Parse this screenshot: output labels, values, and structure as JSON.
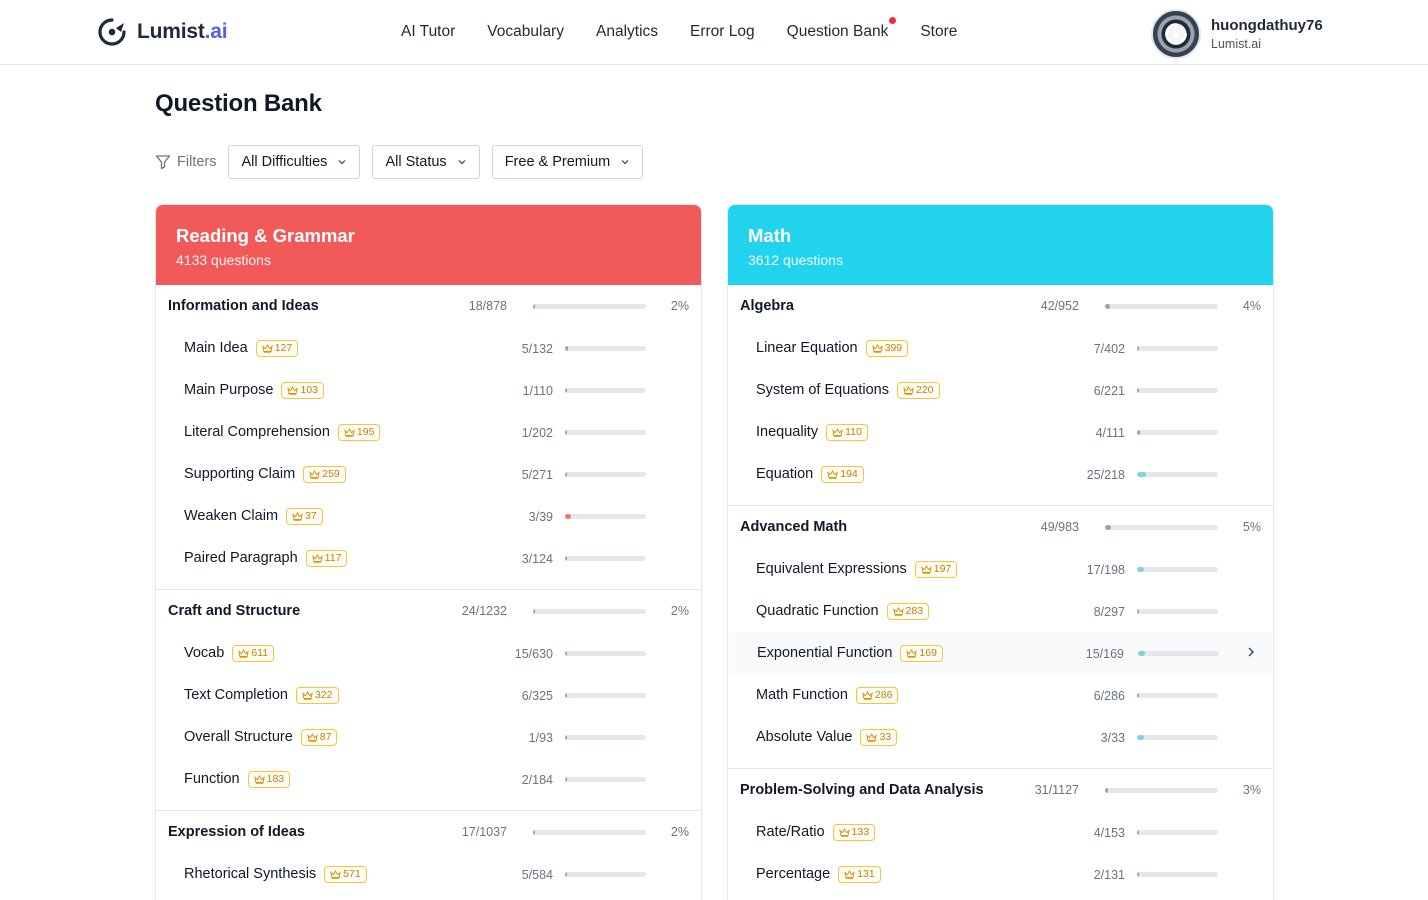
{
  "header": {
    "brand_main": "Lumist",
    "brand_suffix": ".ai",
    "nav": [
      {
        "label": "AI Tutor"
      },
      {
        "label": "Vocabulary"
      },
      {
        "label": "Analytics"
      },
      {
        "label": "Error Log"
      },
      {
        "label": "Question Bank",
        "notification_dot": true
      },
      {
        "label": "Store"
      }
    ],
    "user": {
      "name": "huongdathuy76",
      "sub": "Lumist.ai"
    }
  },
  "page": {
    "title": "Question Bank",
    "filters_label": "Filters",
    "filters": [
      {
        "value": "All Difficulties"
      },
      {
        "value": "All Status"
      },
      {
        "value": "Free & Premium"
      }
    ]
  },
  "colors": {
    "reading": "#f25a5a",
    "math": "#22d3ee",
    "badge_border": "#f5c542",
    "bar_track": "#e5e7eb"
  },
  "cards": [
    {
      "title": "Reading & Grammar",
      "count": "4133 questions",
      "sections": [
        {
          "name": "Information and Ideas",
          "fraction": "18/878",
          "percent": "2%",
          "progress": 0.02,
          "items": [
            {
              "name": "Main Idea",
              "badge": "127",
              "fraction": "5/132",
              "progress": 0.038
            },
            {
              "name": "Main Purpose",
              "badge": "103",
              "fraction": "1/110",
              "progress": 0.009
            },
            {
              "name": "Literal Comprehension",
              "badge": "195",
              "fraction": "1/202",
              "progress": 0.005
            },
            {
              "name": "Supporting Claim",
              "badge": "259",
              "fraction": "5/271",
              "progress": 0.018
            },
            {
              "name": "Weaken Claim",
              "badge": "37",
              "fraction": "3/39",
              "progress": 0.077
            },
            {
              "name": "Paired Paragraph",
              "badge": "117",
              "fraction": "3/124",
              "progress": 0.024
            }
          ]
        },
        {
          "name": "Craft and Structure",
          "fraction": "24/1232",
          "percent": "2%",
          "progress": 0.02,
          "items": [
            {
              "name": "Vocab",
              "badge": "611",
              "fraction": "15/630",
              "progress": 0.024
            },
            {
              "name": "Text Completion",
              "badge": "322",
              "fraction": "6/325",
              "progress": 0.018
            },
            {
              "name": "Overall Structure",
              "badge": "87",
              "fraction": "1/93",
              "progress": 0.011
            },
            {
              "name": "Function",
              "badge": "183",
              "fraction": "2/184",
              "progress": 0.011
            }
          ]
        },
        {
          "name": "Expression of Ideas",
          "fraction": "17/1037",
          "percent": "2%",
          "progress": 0.016,
          "items": [
            {
              "name": "Rhetorical Synthesis",
              "badge": "571",
              "fraction": "5/584",
              "progress": 0.009
            }
          ]
        }
      ]
    },
    {
      "title": "Math",
      "count": "3612 questions",
      "sections": [
        {
          "name": "Algebra",
          "fraction": "42/952",
          "percent": "4%",
          "progress": 0.044,
          "items": [
            {
              "name": "Linear Equation",
              "badge": "399",
              "fraction": "7/402",
              "progress": 0.017
            },
            {
              "name": "System of Equations",
              "badge": "220",
              "fraction": "6/221",
              "progress": 0.027
            },
            {
              "name": "Inequality",
              "badge": "110",
              "fraction": "4/111",
              "progress": 0.036
            },
            {
              "name": "Equation",
              "badge": "194",
              "fraction": "25/218",
              "progress": 0.115
            }
          ]
        },
        {
          "name": "Advanced Math",
          "fraction": "49/983",
          "percent": "5%",
          "progress": 0.05,
          "items": [
            {
              "name": "Equivalent Expressions",
              "badge": "197",
              "fraction": "17/198",
              "progress": 0.086
            },
            {
              "name": "Quadratic Function",
              "badge": "283",
              "fraction": "8/297",
              "progress": 0.027
            },
            {
              "name": "Exponential Function",
              "badge": "169",
              "fraction": "15/169",
              "progress": 0.089,
              "hover": true
            },
            {
              "name": "Math Function",
              "badge": "286",
              "fraction": "6/286",
              "progress": 0.021
            },
            {
              "name": "Absolute Value",
              "badge": "33",
              "fraction": "3/33",
              "progress": 0.091
            }
          ]
        },
        {
          "name": "Problem-Solving and Data Analysis",
          "fraction": "31/1127",
          "percent": "3%",
          "progress": 0.028,
          "items": [
            {
              "name": "Rate/Ratio",
              "badge": "133",
              "fraction": "4/153",
              "progress": 0.026
            },
            {
              "name": "Percentage",
              "badge": "131",
              "fraction": "2/131",
              "progress": 0.015
            }
          ]
        }
      ]
    }
  ]
}
